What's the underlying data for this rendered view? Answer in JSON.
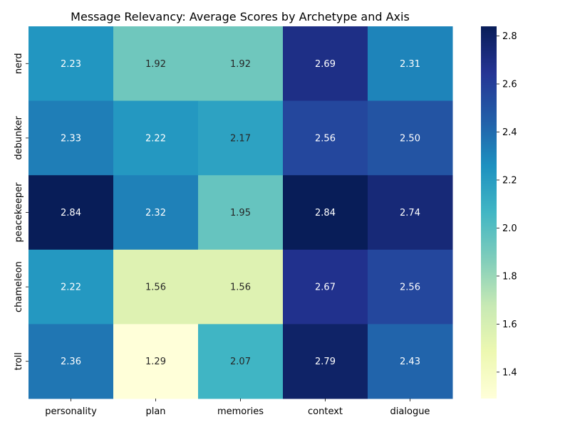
{
  "chart_data": {
    "type": "heatmap",
    "title": "Message Relevancy: Average Scores by Archetype and Axis",
    "xlabel": "",
    "ylabel": "",
    "x_categories": [
      "personality",
      "plan",
      "memories",
      "context",
      "dialogue"
    ],
    "y_categories": [
      "nerd",
      "debunker",
      "peacekeeper",
      "chameleon",
      "troll"
    ],
    "values": [
      [
        2.23,
        1.92,
        1.92,
        2.69,
        2.31
      ],
      [
        2.33,
        2.22,
        2.17,
        2.56,
        2.5
      ],
      [
        2.84,
        2.32,
        1.95,
        2.84,
        2.74
      ],
      [
        2.22,
        1.56,
        1.56,
        2.67,
        2.56
      ],
      [
        2.36,
        1.29,
        2.07,
        2.79,
        2.43
      ]
    ],
    "value_format": "0.00",
    "colormap": "YlGnBu",
    "colormap_stops": [
      "#ffffd9",
      "#edf8b1",
      "#c7e9b4",
      "#7fcdbb",
      "#41b6c4",
      "#1d91c0",
      "#225ea8",
      "#253494",
      "#081d58"
    ],
    "vmin": 1.29,
    "vmax": 2.84,
    "colorbar": {
      "ticks": [
        1.4,
        1.6,
        1.8,
        2.0,
        2.2,
        2.4,
        2.6,
        2.8
      ],
      "tick_labels": [
        "1.4",
        "1.6",
        "1.8",
        "2.0",
        "2.2",
        "2.4",
        "2.6",
        "2.8"
      ],
      "placement": "right"
    },
    "grid": false
  }
}
